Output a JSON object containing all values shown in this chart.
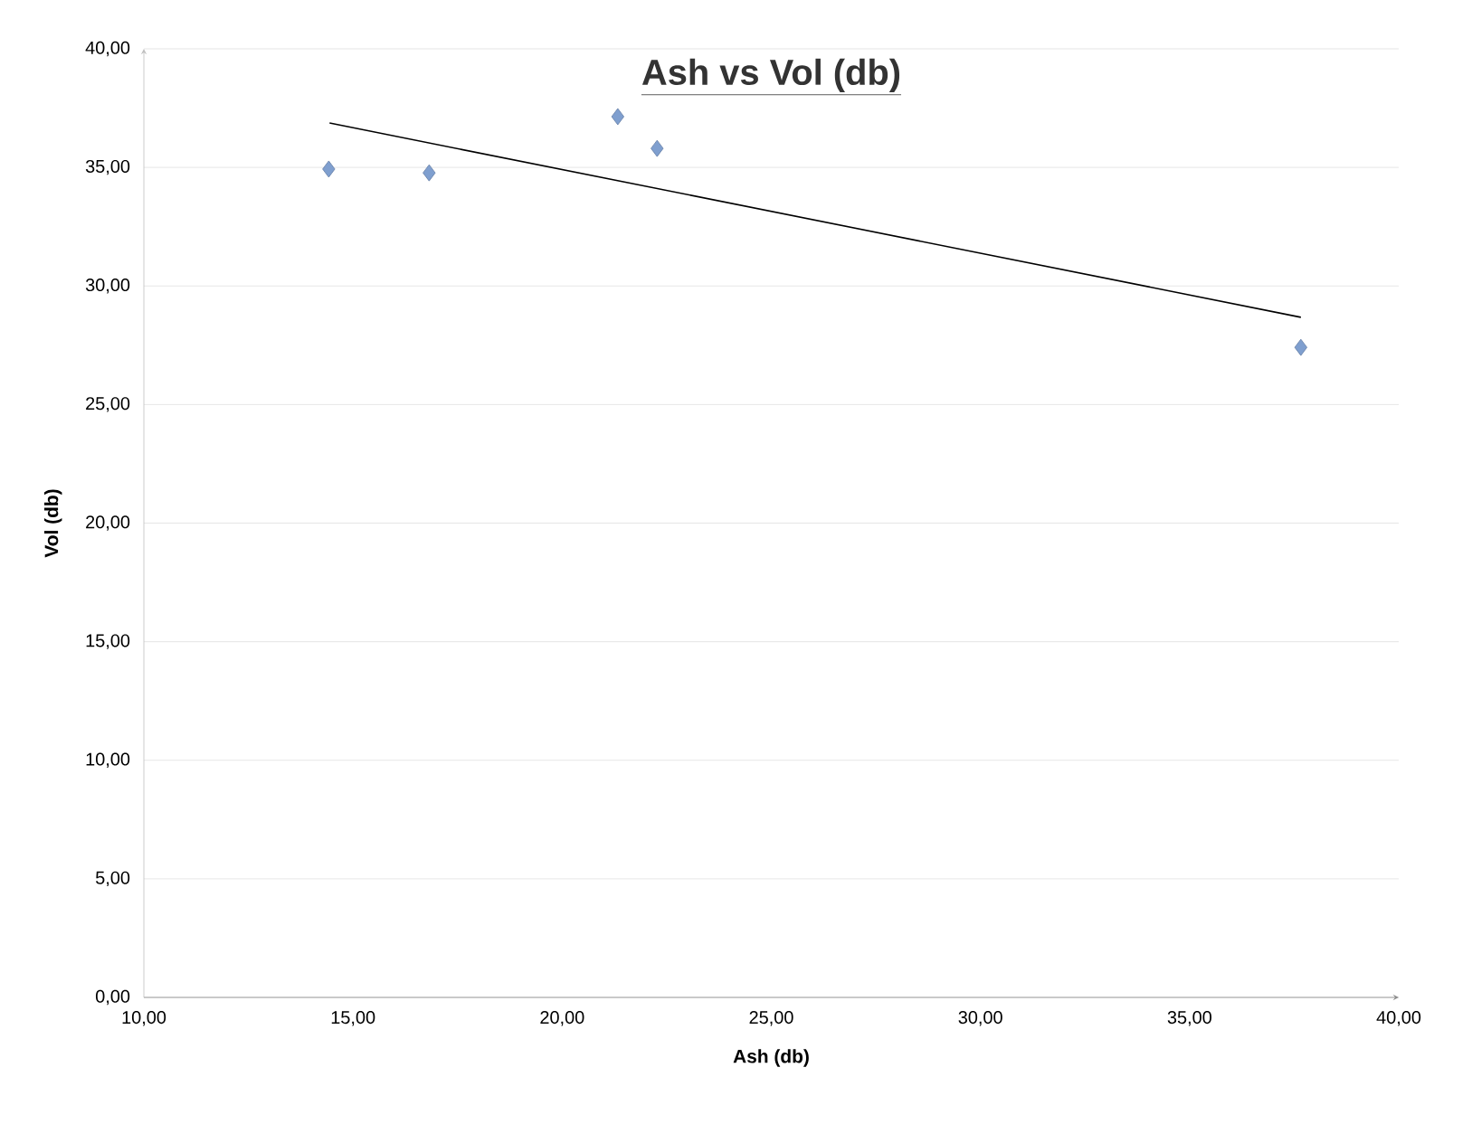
{
  "chart_data": {
    "type": "scatter",
    "title": "Ash vs Vol (db)",
    "xlabel": "Ash (db)",
    "ylabel": "Vol (db)",
    "xlim": [
      10,
      40
    ],
    "ylim": [
      0,
      40
    ],
    "xticks": [
      {
        "value": 10,
        "label": "10,00"
      },
      {
        "value": 15,
        "label": "15,00"
      },
      {
        "value": 20,
        "label": "20,00"
      },
      {
        "value": 25,
        "label": "25,00"
      },
      {
        "value": 30,
        "label": "30,00"
      },
      {
        "value": 35,
        "label": "35,00"
      },
      {
        "value": 40,
        "label": "40,00"
      }
    ],
    "yticks": [
      {
        "value": 0,
        "label": "0,00"
      },
      {
        "value": 5,
        "label": "5,00"
      },
      {
        "value": 10,
        "label": "10,00"
      },
      {
        "value": 15,
        "label": "15,00"
      },
      {
        "value": 20,
        "label": "20,00"
      },
      {
        "value": 25,
        "label": "25,00"
      },
      {
        "value": 30,
        "label": "30,00"
      },
      {
        "value": 35,
        "label": "35,00"
      },
      {
        "value": 40,
        "label": "40,00"
      }
    ],
    "grid": "y",
    "series": [
      {
        "color": "#7f9fcf",
        "marker": "diamond",
        "x": [
          14.42,
          16.82,
          21.33,
          22.27,
          37.66
        ],
        "values": [
          34.93,
          34.77,
          37.14,
          35.8,
          27.41
        ]
      },
      {
        "type": "line",
        "marker": "none",
        "color": "#000000",
        "x": [
          14.44,
          37.66
        ],
        "values": [
          36.87,
          28.68
        ]
      }
    ]
  }
}
